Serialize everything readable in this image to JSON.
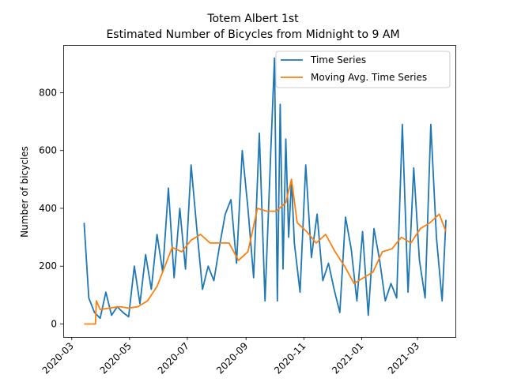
{
  "chart_data": {
    "type": "line",
    "title": "Totem Albert 1st\nEstimated Number of Bicycles from Midnight to 9 AM",
    "title_lines": [
      "Totem Albert 1st",
      "Estimated Number of Bicycles from Midnight to 9 AM"
    ],
    "xlabel": "",
    "ylabel": "Number of bicycles",
    "x_tick_labels": [
      "2020-03",
      "2020-05",
      "2020-07",
      "2020-09",
      "2020-11",
      "2021-01",
      "2021-03"
    ],
    "x_tick_dates": [
      "2020-03-01",
      "2020-05-01",
      "2020-07-01",
      "2020-09-01",
      "2020-11-01",
      "2021-01-01",
      "2021-03-01"
    ],
    "y_ticks": [
      0,
      200,
      400,
      600,
      800
    ],
    "xlim": [
      "2020-02-21",
      "2021-04-10"
    ],
    "ylim": [
      -45,
      965
    ],
    "grid": false,
    "legend_position": "top-right",
    "series": [
      {
        "name": "Time Series",
        "color": "#1f77b4",
        "x": [
          "2020-03-14",
          "2020-03-19",
          "2020-03-25",
          "2020-03-31",
          "2020-04-06",
          "2020-04-12",
          "2020-04-18",
          "2020-04-24",
          "2020-04-30",
          "2020-05-06",
          "2020-05-12",
          "2020-05-18",
          "2020-05-24",
          "2020-05-30",
          "2020-06-05",
          "2020-06-11",
          "2020-06-17",
          "2020-06-23",
          "2020-06-29",
          "2020-07-05",
          "2020-07-11",
          "2020-07-17",
          "2020-07-23",
          "2020-07-29",
          "2020-08-04",
          "2020-08-10",
          "2020-08-16",
          "2020-08-22",
          "2020-08-28",
          "2020-09-03",
          "2020-09-09",
          "2020-09-15",
          "2020-09-21",
          "2020-09-27",
          "2020-10-01",
          "2020-10-04",
          "2020-10-07",
          "2020-10-10",
          "2020-10-13",
          "2020-10-16",
          "2020-10-19",
          "2020-10-22",
          "2020-10-28",
          "2020-11-03",
          "2020-11-09",
          "2020-11-15",
          "2020-11-21",
          "2020-11-27",
          "2020-12-03",
          "2020-12-09",
          "2020-12-15",
          "2020-12-21",
          "2020-12-27",
          "2021-01-02",
          "2021-01-08",
          "2021-01-14",
          "2021-01-20",
          "2021-01-26",
          "2021-02-01",
          "2021-02-07",
          "2021-02-13",
          "2021-02-19",
          "2021-02-25",
          "2021-03-03",
          "2021-03-09",
          "2021-03-15",
          "2021-03-21",
          "2021-03-27",
          "2021-03-31"
        ],
        "values": [
          350,
          90,
          40,
          20,
          110,
          30,
          60,
          40,
          25,
          200,
          70,
          240,
          120,
          310,
          180,
          470,
          160,
          400,
          190,
          550,
          330,
          120,
          200,
          150,
          270,
          380,
          430,
          210,
          600,
          400,
          160,
          660,
          80,
          590,
          920,
          80,
          760,
          190,
          640,
          300,
          500,
          280,
          110,
          550,
          230,
          380,
          150,
          210,
          120,
          40,
          370,
          260,
          80,
          320,
          30,
          330,
          220,
          80,
          140,
          90,
          690,
          110,
          540,
          220,
          90,
          690,
          300,
          80,
          360
        ]
      },
      {
        "name": "Moving Avg. Time Series",
        "color": "#ff7f0e",
        "x": [
          "2020-03-14",
          "2020-03-26",
          "2020-03-27",
          "2020-03-31",
          "2020-04-10",
          "2020-04-20",
          "2020-04-30",
          "2020-05-10",
          "2020-05-20",
          "2020-05-30",
          "2020-06-05",
          "2020-06-15",
          "2020-06-25",
          "2020-07-05",
          "2020-07-15",
          "2020-07-25",
          "2020-08-04",
          "2020-08-14",
          "2020-08-24",
          "2020-09-03",
          "2020-09-13",
          "2020-09-23",
          "2020-10-03",
          "2020-10-13",
          "2020-10-19",
          "2020-10-25",
          "2020-11-04",
          "2020-11-14",
          "2020-11-24",
          "2020-12-04",
          "2020-12-14",
          "2020-12-24",
          "2021-01-03",
          "2021-01-13",
          "2021-01-23",
          "2021-02-02",
          "2021-02-12",
          "2021-02-22",
          "2021-03-04",
          "2021-03-14",
          "2021-03-24",
          "2021-03-31"
        ],
        "values": [
          0,
          0,
          80,
          50,
          55,
          60,
          55,
          60,
          80,
          130,
          180,
          265,
          250,
          290,
          310,
          280,
          280,
          280,
          220,
          250,
          400,
          390,
          390,
          420,
          500,
          350,
          320,
          280,
          310,
          250,
          200,
          140,
          160,
          180,
          250,
          260,
          300,
          280,
          330,
          350,
          380,
          320
        ]
      }
    ]
  }
}
